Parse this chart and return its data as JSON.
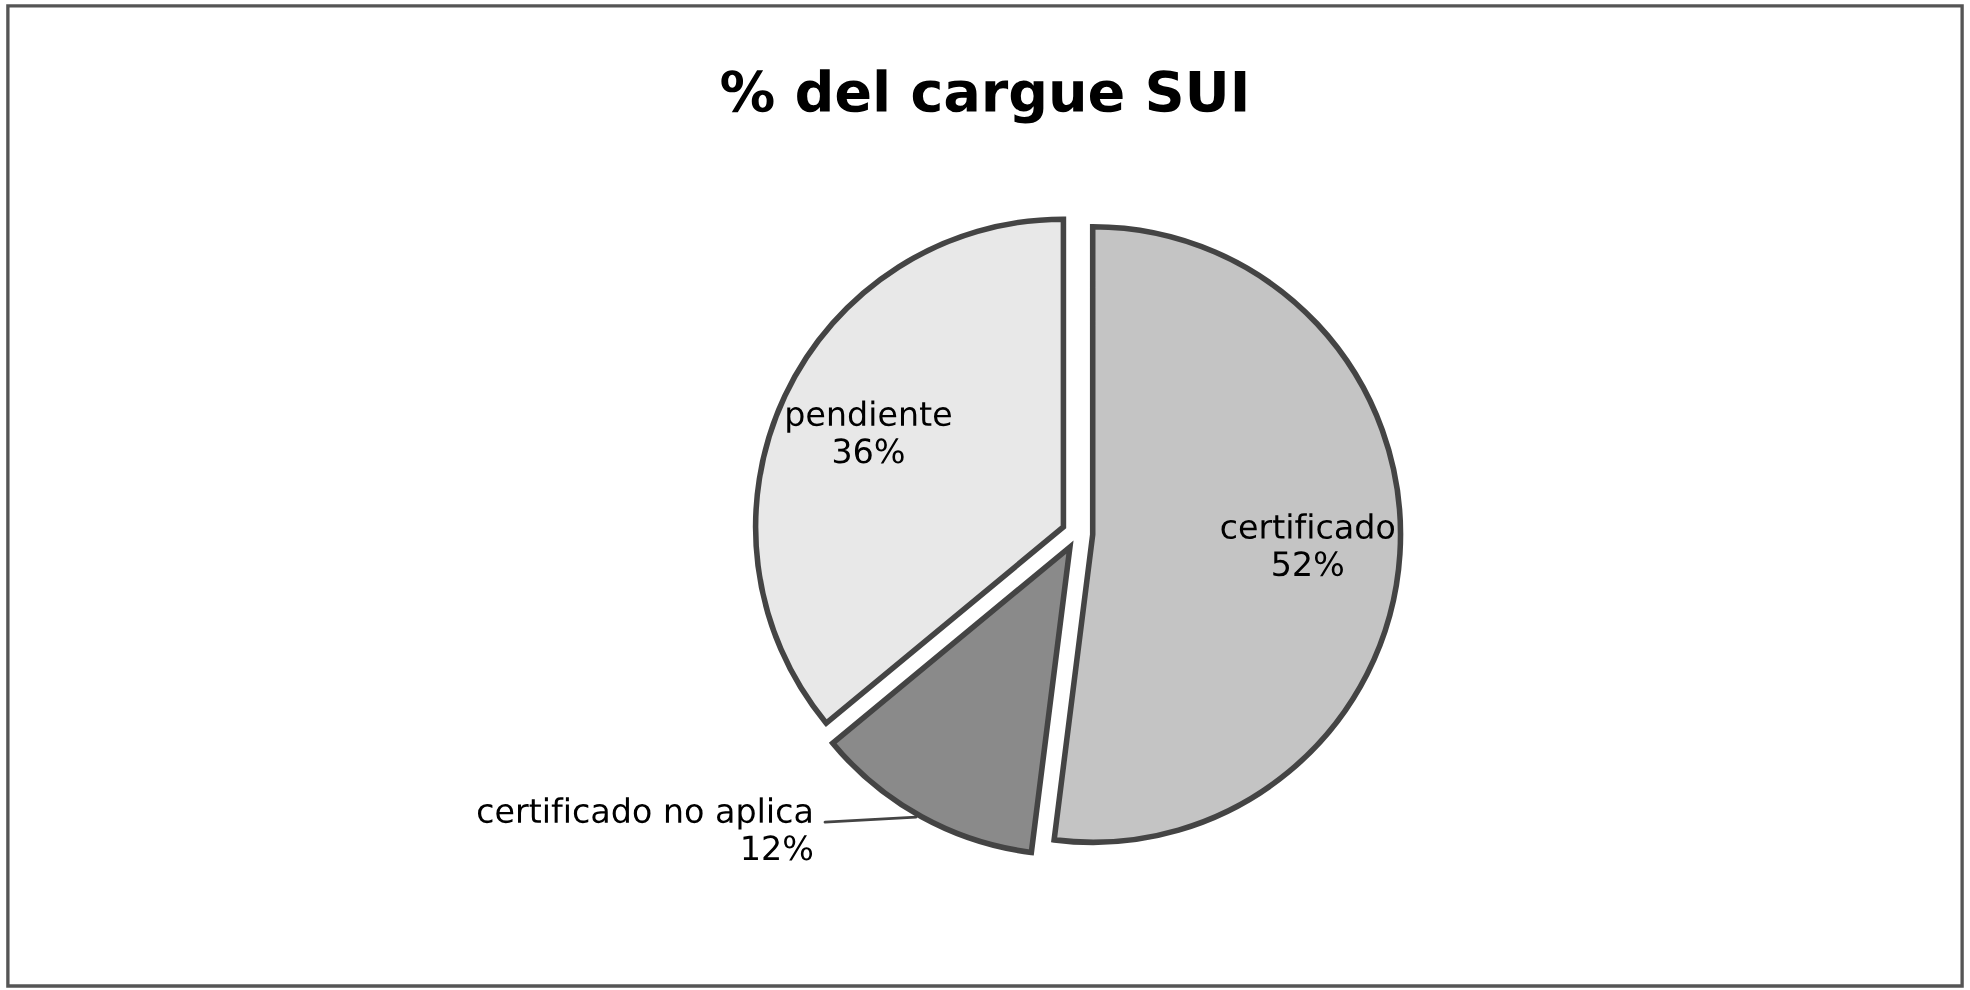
{
  "chart_data": {
    "type": "pie",
    "title": "% del cargue SUI",
    "categories": [
      "certificado",
      "certificado no aplica",
      "pendiente"
    ],
    "values": [
      52,
      12,
      36
    ],
    "value_labels": [
      "52%",
      "12%",
      "36%"
    ],
    "colors": [
      "#c4c4c4",
      "#8a8a8a",
      "#e8e8e8"
    ],
    "legend": false
  }
}
